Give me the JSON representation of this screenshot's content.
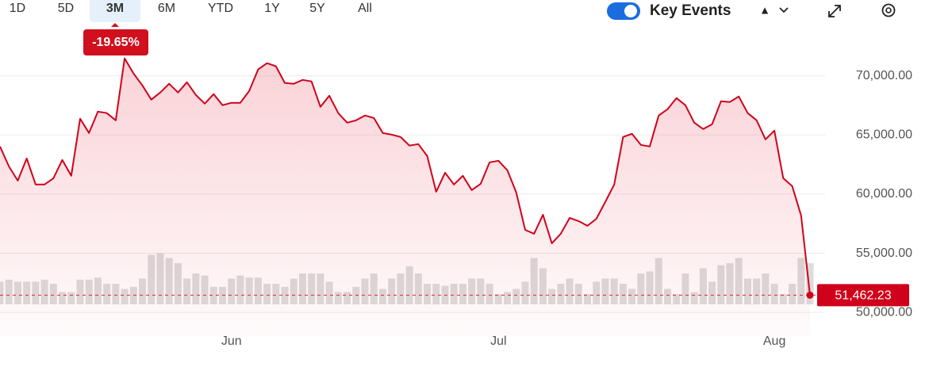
{
  "ranges": [
    "1D",
    "5D",
    "3M",
    "6M",
    "YTD",
    "1Y",
    "5Y",
    "All"
  ],
  "selected_range": 2,
  "change": {
    "value": -19.65,
    "label": "-19.65%"
  },
  "key_events": "Key Events",
  "key_events_on": true,
  "chart_data": {
    "type": "line",
    "color": "#d0021b",
    "categories": [
      null,
      null,
      null,
      null,
      null,
      null,
      null,
      null,
      null,
      null,
      null,
      null,
      null,
      null,
      null,
      null,
      null,
      null,
      null,
      null,
      null,
      null,
      null,
      null,
      null,
      null,
      "Jun",
      null,
      null,
      null,
      null,
      null,
      null,
      null,
      null,
      null,
      null,
      null,
      null,
      null,
      null,
      null,
      null,
      null,
      null,
      null,
      null,
      null,
      null,
      null,
      null,
      null,
      null,
      null,
      null,
      null,
      "Jul",
      null,
      null,
      null,
      null,
      null,
      null,
      null,
      null,
      null,
      null,
      null,
      null,
      null,
      null,
      null,
      null,
      null,
      null,
      null,
      null,
      null,
      null,
      null,
      null,
      null,
      null,
      null,
      null,
      null,
      null,
      "Aug",
      null,
      null,
      null,
      null
    ],
    "values": [
      64030,
      62350,
      61140,
      63020,
      60810,
      60810,
      61340,
      62890,
      61550,
      66380,
      65170,
      66980,
      66850,
      66240,
      71480,
      70200,
      69190,
      67990,
      68590,
      69330,
      68590,
      69460,
      68390,
      67650,
      68460,
      67520,
      67720,
      67720,
      68730,
      70540,
      71070,
      70810,
      69400,
      69330,
      69660,
      69530,
      67380,
      68320,
      66850,
      66040,
      66240,
      66650,
      66440,
      65170,
      65030,
      64830,
      64100,
      64230,
      63220,
      60200,
      61810,
      60810,
      61550,
      60340,
      60870,
      62690,
      62820,
      62020,
      60140,
      56980,
      56650,
      58260,
      55840,
      56650,
      57990,
      57720,
      57320,
      57920,
      59330,
      60810,
      64830,
      65100,
      64160,
      64030,
      66650,
      67180,
      68120,
      67520,
      66040,
      65500,
      65910,
      67850,
      67790,
      68260,
      66850,
      66240,
      64630,
      65370,
      61340,
      60670,
      58190,
      51462.23
    ],
    "value_labels": [
      null,
      null,
      null,
      null,
      null,
      null,
      null,
      null,
      null,
      null,
      null,
      null,
      null,
      null,
      null,
      null,
      null,
      null,
      null,
      null,
      null,
      null,
      null,
      null,
      null,
      null,
      null,
      null,
      null,
      null,
      null,
      null,
      null,
      null,
      null,
      null,
      null,
      null,
      null,
      null,
      null,
      null,
      null,
      null,
      null,
      null,
      null,
      null,
      null,
      null,
      null,
      null,
      null,
      null,
      null,
      null,
      null,
      null,
      null,
      null,
      null,
      null,
      null,
      null,
      null,
      null,
      null,
      null,
      null,
      null,
      null,
      null,
      null,
      null,
      null,
      null,
      null,
      null,
      null,
      null,
      null,
      null,
      null,
      null,
      null,
      null,
      null,
      null,
      null,
      null,
      null,
      "51,462.23"
    ],
    "volume": [
      22,
      24,
      22,
      22,
      22,
      24,
      20,
      12,
      12,
      24,
      24,
      26,
      20,
      20,
      15,
      17,
      25,
      48,
      50,
      45,
      40,
      25,
      30,
      28,
      17,
      17,
      25,
      28,
      26,
      26,
      20,
      20,
      17,
      25,
      30,
      30,
      30,
      22,
      12,
      12,
      17,
      25,
      30,
      15,
      25,
      30,
      37,
      30,
      20,
      20,
      18,
      20,
      20,
      25,
      25,
      20,
      10,
      12,
      15,
      22,
      45,
      35,
      15,
      20,
      25,
      20,
      10,
      22,
      25,
      25,
      20,
      15,
      30,
      32,
      45,
      15,
      10,
      30,
      12,
      35,
      22,
      38,
      40,
      45,
      25,
      25,
      30,
      20,
      10,
      20,
      45,
      40
    ],
    "ylim": [
      48000,
      74000
    ],
    "yticks": [
      {
        "value": 50000,
        "label": "50,000.00"
      },
      {
        "value": 55000,
        "label": "55,000.00"
      },
      {
        "value": 60000,
        "label": "60,000.00"
      },
      {
        "value": 65000,
        "label": "65,000.00"
      },
      {
        "value": 70000,
        "label": "70,000.00"
      }
    ],
    "grid": true
  }
}
